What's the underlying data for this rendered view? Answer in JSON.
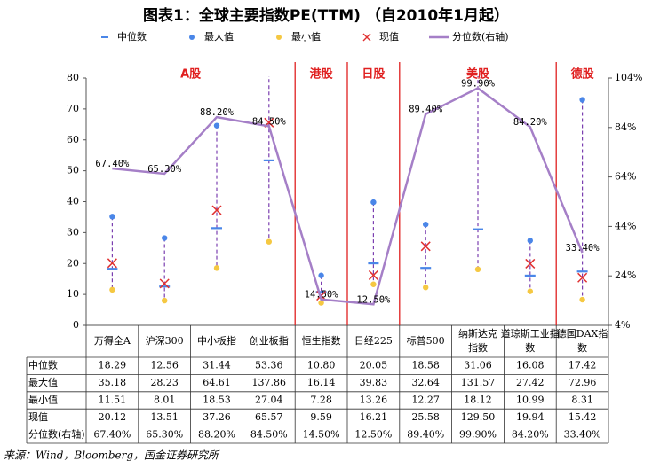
{
  "chart_data": {
    "type": "range",
    "title": "图表1：全球主要指数PE(TTM) （自2010年1月起）",
    "source": "来源：Wind，Bloomberg，国金证券研究所",
    "categories": [
      "万得全A",
      "沪深300",
      "中小板指",
      "创业板指",
      "恒生指数",
      "日经225",
      "标普500",
      "纳斯达克指数",
      "道琼斯工业指数",
      "德国DAX指数"
    ],
    "groups": [
      "A股",
      "港股",
      "日股",
      "美股",
      "德股"
    ],
    "series": [
      {
        "name": "中位数",
        "color": "#4a86e8",
        "marker": "dash",
        "values": [
          18.29,
          12.56,
          31.44,
          53.36,
          10.8,
          20.05,
          18.58,
          31.06,
          16.08,
          17.42
        ],
        "value_labels": [
          "18.29",
          "12.56",
          "31.44",
          "53.36",
          "10.80",
          "20.05",
          "18.58",
          "31.06",
          "16.08",
          "17.42"
        ]
      },
      {
        "name": "最大值",
        "color": "#4a86e8",
        "marker": "dot",
        "values": [
          35.18,
          28.23,
          64.61,
          137.86,
          16.14,
          39.83,
          32.64,
          131.57,
          27.42,
          72.96
        ],
        "value_labels": [
          "35.18",
          "28.23",
          "64.61",
          "137.86",
          "16.14",
          "39.83",
          "32.64",
          "131.57",
          "27.42",
          "72.96"
        ]
      },
      {
        "name": "最小值",
        "color": "#f5c842",
        "marker": "dot",
        "values": [
          11.51,
          8.01,
          18.53,
          27.04,
          7.28,
          13.26,
          12.27,
          18.12,
          10.99,
          8.31
        ],
        "value_labels": [
          "11.51",
          "8.01",
          "18.53",
          "27.04",
          "7.28",
          "13.26",
          "12.27",
          "18.12",
          "10.99",
          "8.31"
        ]
      },
      {
        "name": "现值",
        "color": "#e03030",
        "marker": "cross",
        "values": [
          20.12,
          13.51,
          37.26,
          65.57,
          9.59,
          16.21,
          25.58,
          129.5,
          19.94,
          15.42
        ],
        "value_labels": [
          "20.12",
          "13.51",
          "37.26",
          "65.57",
          "9.59",
          "16.21",
          "25.58",
          "129.50",
          "19.94",
          "15.42"
        ]
      },
      {
        "name": "分位数(右轴)",
        "color": "#a57fc7",
        "marker": "line",
        "axis": "y2",
        "values": [
          67.4,
          65.3,
          88.2,
          84.5,
          14.5,
          12.5,
          89.4,
          99.9,
          84.2,
          33.4
        ],
        "value_labels": [
          "67.40%",
          "65.30%",
          "88.20%",
          "84.50%",
          "14.50%",
          "12.50%",
          "89.40%",
          "99.90%",
          "84.20%",
          "33.40%"
        ]
      }
    ],
    "ylim": [
      0,
      80
    ],
    "yticks": [
      0,
      10,
      20,
      30,
      40,
      50,
      60,
      70,
      80
    ],
    "y2lim": [
      4,
      104
    ],
    "y2ticks": [
      {
        "value": 4,
        "label": "4%"
      },
      {
        "value": 24,
        "label": "24%"
      },
      {
        "value": 44,
        "label": "44%"
      },
      {
        "value": 64,
        "label": "64%"
      },
      {
        "value": 84,
        "label": "84%"
      },
      {
        "value": 104,
        "label": "104%"
      }
    ],
    "group_color": "#e02020"
  }
}
